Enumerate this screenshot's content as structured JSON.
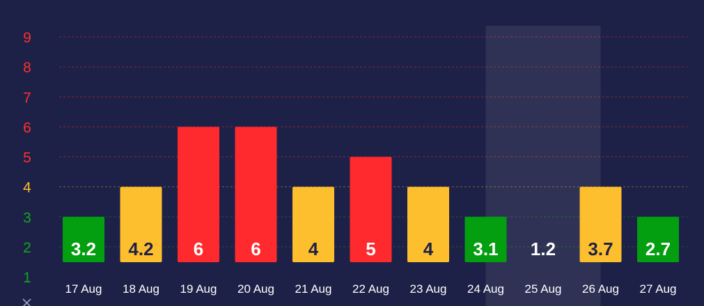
{
  "chart_data": {
    "type": "bar",
    "title": "",
    "xlabel": "",
    "ylabel": "",
    "categories": [
      "17 Aug",
      "18 Aug",
      "19 Aug",
      "20 Aug",
      "21 Aug",
      "22 Aug",
      "23 Aug",
      "24 Aug",
      "25 Aug",
      "26 Aug",
      "27 Aug"
    ],
    "values": [
      3.2,
      4.2,
      6,
      6,
      4,
      5,
      4,
      3.1,
      1.2,
      3.7,
      2.7
    ],
    "bar_levels": [
      3,
      4,
      6,
      6,
      4,
      5,
      4,
      3,
      1.3,
      4,
      3
    ],
    "value_labels": [
      "3.2",
      "4.2",
      "6",
      "6",
      "4",
      "5",
      "4",
      "3.1",
      "1.2",
      "3.7",
      "2.7"
    ],
    "ylim": [
      0.5,
      9.5
    ],
    "yticks": [
      {
        "label": "9",
        "value": 9,
        "color": "#ff2d2d"
      },
      {
        "label": "8",
        "value": 8,
        "color": "#ff2d2d"
      },
      {
        "label": "7",
        "value": 7,
        "color": "#ff2d2d"
      },
      {
        "label": "6",
        "value": 6,
        "color": "#ff2d2d"
      },
      {
        "label": "5",
        "value": 5,
        "color": "#ff2d2d"
      },
      {
        "label": "4",
        "value": 4,
        "color": "#fbbd2c"
      },
      {
        "label": "3",
        "value": 3,
        "color": "#10a81a"
      },
      {
        "label": "2",
        "value": 2,
        "color": "#10a81a"
      },
      {
        "label": "1",
        "value": 1,
        "color": "#10a81a"
      }
    ],
    "colors": {
      "green": "#049e11",
      "yellow": "#fdbf2d",
      "red": "#ff2a2e"
    },
    "bar_colors": [
      "green",
      "yellow",
      "red",
      "red",
      "yellow",
      "red",
      "yellow",
      "green",
      "green",
      "yellow",
      "green"
    ],
    "label_colors": [
      "#ffffff",
      "#1e2147",
      "#ffffff",
      "#ffffff",
      "#1e2147",
      "#ffffff",
      "#1e2147",
      "#ffffff",
      "#ffffff",
      "#1e2147",
      "#ffffff"
    ],
    "highlighted_category": "25 Aug",
    "grid": true
  }
}
